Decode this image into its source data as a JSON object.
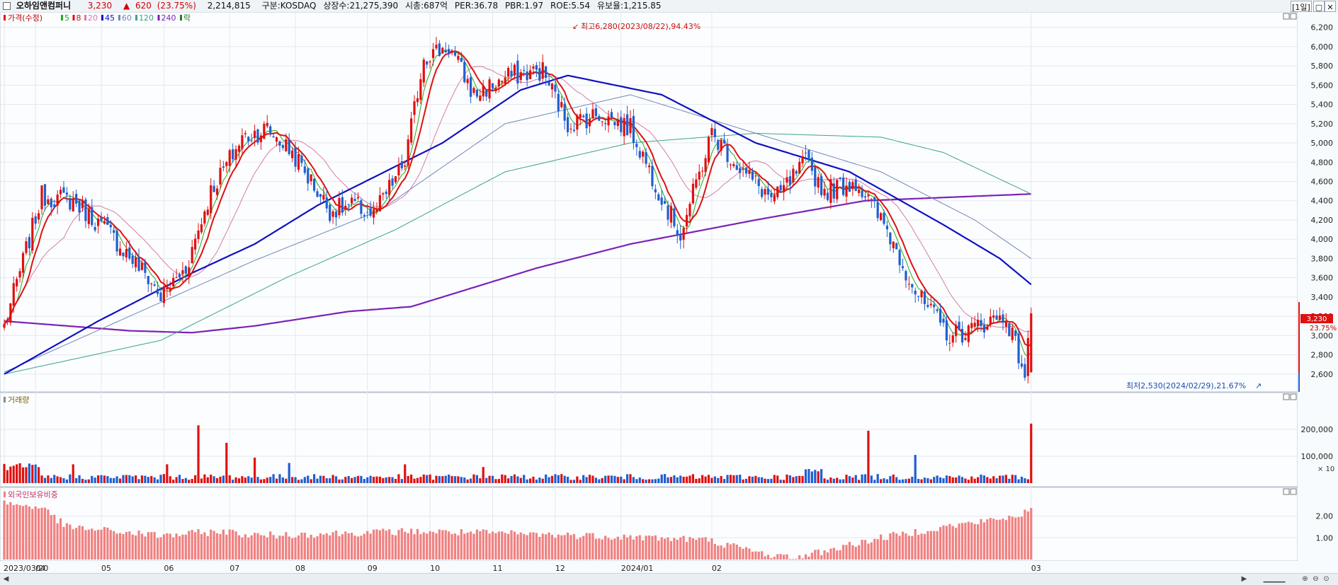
{
  "header": {
    "stock_name": "오하임앤컴퍼니",
    "price": "3,230",
    "change_arrow": "▲",
    "change": "620",
    "change_pct": "(23.75%)",
    "volume": "2,214,815",
    "market": "구분:KOSDAQ",
    "shares": "상장수:21,275,390",
    "market_cap": "시총:687억",
    "per": "PER:36.78",
    "pbr": "PBR:1.97",
    "roe": "ROE:5.54",
    "reserve": "유보율:1,215.85",
    "period_button": "[1일]"
  },
  "legend": {
    "price_label": "가격(수정)",
    "ma_items": [
      {
        "label": "5",
        "color": "#22aa22"
      },
      {
        "label": "8",
        "color": "#e01010"
      },
      {
        "label": "20",
        "color": "#d67ca8"
      },
      {
        "label": "45",
        "color": "#1010c0"
      },
      {
        "label": "60",
        "color": "#6f88b8"
      },
      {
        "label": "120",
        "color": "#3aa38a"
      },
      {
        "label": "240",
        "color": "#7a22b8"
      },
      {
        "label": "락",
        "color": "#2a7a2a"
      }
    ]
  },
  "colors": {
    "up": "#e01010",
    "down": "#1f5fd0",
    "foreign": "#f08080",
    "grid": "#e3e8ee"
  },
  "annotations": {
    "high_label": "최고6,280(2023/08/22),94.43%",
    "low_label": "최저2,530(2024/02/29),21.67%",
    "last_price": "3,230",
    "last_pct": "23.75%"
  },
  "volume_panel": {
    "label": "거래량",
    "multiplier": "× 10"
  },
  "foreign_panel": {
    "label": "외국인보유비중"
  },
  "chart_data": {
    "type": "candlestick",
    "x_ticks": [
      "2023/03/20",
      "04",
      "05",
      "06",
      "07",
      "08",
      "09",
      "10",
      "11",
      "12",
      "2024/01",
      "02",
      "03"
    ],
    "price_y_ticks": [
      "6,200",
      "6,000",
      "5,800",
      "5,600",
      "5,400",
      "5,200",
      "5,000",
      "4,800",
      "4,600",
      "4,400",
      "4,200",
      "4,000",
      "3,800",
      "3,600",
      "3,400",
      "3,200",
      "3,000",
      "2,800",
      "2,600"
    ],
    "price_ylim": [
      2540,
      6300
    ],
    "volume_y_ticks": [
      "200,000",
      "100,000"
    ],
    "volume_unit": "× 10",
    "volume_ylim": [
      0,
      300000
    ],
    "foreign_y_ticks": [
      "2.00",
      "1.00"
    ],
    "foreign_ylim": [
      0,
      2.8
    ],
    "high": {
      "value": 6280,
      "date": "2023/08/22",
      "pct": 94.43
    },
    "low": {
      "value": 2530,
      "date": "2024/02/29",
      "pct": 21.67
    },
    "last_close": 3230,
    "series_keypoints": {
      "close": [
        [
          0,
          3100
        ],
        [
          12,
          4450
        ],
        [
          22,
          4400
        ],
        [
          34,
          4050
        ],
        [
          46,
          3600
        ],
        [
          50,
          3400
        ],
        [
          58,
          3700
        ],
        [
          66,
          4500
        ],
        [
          76,
          5050
        ],
        [
          84,
          5150
        ],
        [
          92,
          4900
        ],
        [
          104,
          4300
        ],
        [
          112,
          4350
        ],
        [
          118,
          4250
        ],
        [
          128,
          4800
        ],
        [
          134,
          5900
        ],
        [
          142,
          6000
        ],
        [
          150,
          5500
        ],
        [
          162,
          5700
        ],
        [
          172,
          5750
        ],
        [
          180,
          5200
        ],
        [
          190,
          5300
        ],
        [
          200,
          5150
        ],
        [
          212,
          4300
        ],
        [
          216,
          4050
        ],
        [
          226,
          5100
        ],
        [
          236,
          4700
        ],
        [
          246,
          4400
        ],
        [
          256,
          4800
        ],
        [
          262,
          4500
        ],
        [
          272,
          4600
        ],
        [
          282,
          4100
        ],
        [
          292,
          3400
        ],
        [
          302,
          3000
        ],
        [
          308,
          3050
        ],
        [
          314,
          3150
        ],
        [
          320,
          3200
        ],
        [
          326,
          2600
        ],
        [
          328,
          3230
        ]
      ],
      "ma45": [
        [
          0,
          2600
        ],
        [
          30,
          3150
        ],
        [
          60,
          3650
        ],
        [
          80,
          3950
        ],
        [
          100,
          4350
        ],
        [
          140,
          5000
        ],
        [
          165,
          5550
        ],
        [
          180,
          5700
        ],
        [
          210,
          5500
        ],
        [
          240,
          5000
        ],
        [
          270,
          4700
        ],
        [
          300,
          4150
        ],
        [
          318,
          3800
        ],
        [
          328,
          3530
        ]
      ],
      "ma60": [
        [
          0,
          2620
        ],
        [
          40,
          3200
        ],
        [
          80,
          3780
        ],
        [
          120,
          4300
        ],
        [
          160,
          5200
        ],
        [
          200,
          5500
        ],
        [
          240,
          5100
        ],
        [
          280,
          4700
        ],
        [
          310,
          4200
        ],
        [
          328,
          3800
        ]
      ],
      "ma120": [
        [
          0,
          2600
        ],
        [
          50,
          2950
        ],
        [
          90,
          3600
        ],
        [
          125,
          4100
        ],
        [
          160,
          4700
        ],
        [
          200,
          5000
        ],
        [
          240,
          5100
        ],
        [
          280,
          5060
        ],
        [
          300,
          4900
        ],
        [
          328,
          4470
        ]
      ],
      "ma240": [
        [
          0,
          3150
        ],
        [
          40,
          3050
        ],
        [
          60,
          3030
        ],
        [
          80,
          3100
        ],
        [
          110,
          3250
        ],
        [
          130,
          3300
        ],
        [
          170,
          3700
        ],
        [
          200,
          3950
        ],
        [
          240,
          4200
        ],
        [
          275,
          4400
        ],
        [
          328,
          4470
        ]
      ]
    }
  }
}
